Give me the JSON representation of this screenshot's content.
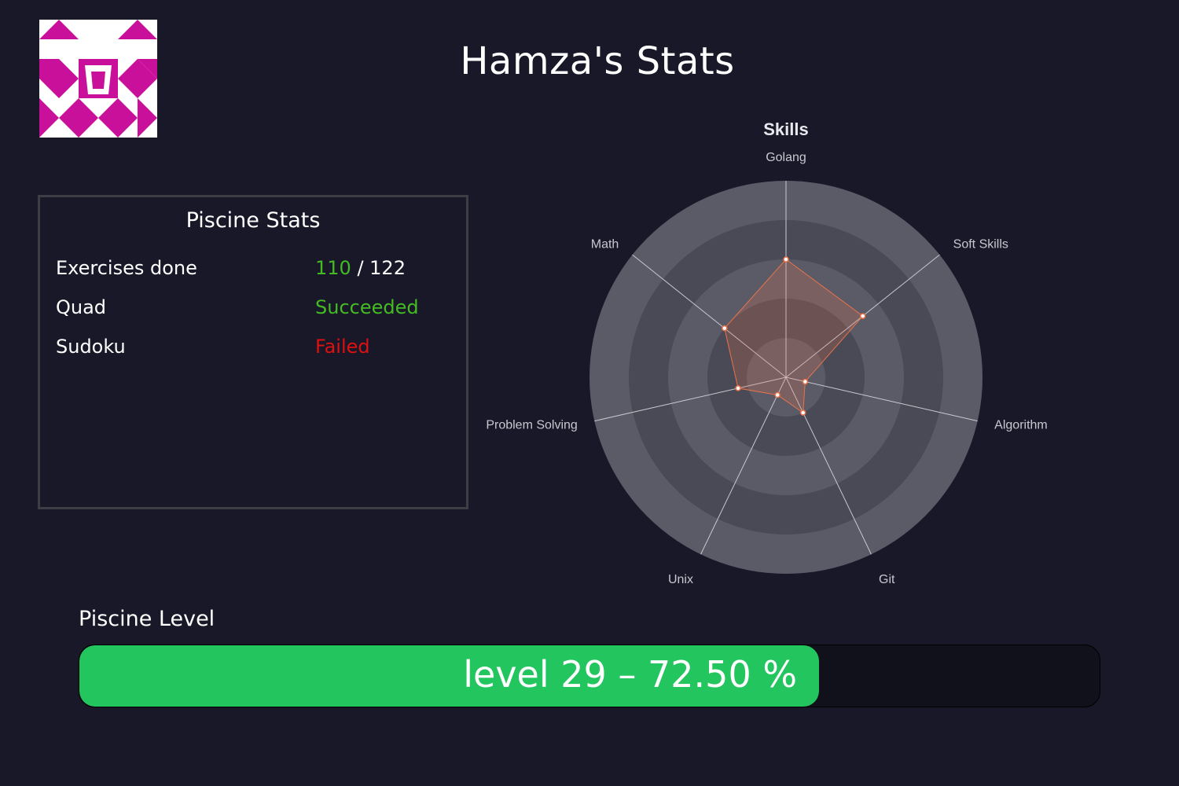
{
  "header": {
    "title": "Hamza's Stats"
  },
  "avatar": {
    "icon": "identicon-avatar",
    "color": "#c8109a"
  },
  "piscine_stats": {
    "title": "Piscine Stats",
    "rows": [
      {
        "label": "Exercises done",
        "value_done": "110",
        "value_sep": " / ",
        "value_total": "122",
        "status": "progress"
      },
      {
        "label": "Quad",
        "value": "Succeeded",
        "status": "success"
      },
      {
        "label": "Sudoku",
        "value": "Failed",
        "status": "failure"
      }
    ]
  },
  "chart_data": {
    "type": "radar",
    "title": "Skills",
    "axes": [
      "Golang",
      "Soft Skills",
      "Algorithm",
      "Git",
      "Unix",
      "Problem Solving",
      "Math"
    ],
    "values": [
      60,
      50,
      10,
      20,
      10,
      25,
      40
    ],
    "range": [
      0,
      100
    ],
    "rings": 5,
    "series_color": "#e8734a"
  },
  "level": {
    "label": "Piscine Level",
    "text": "level 29 – 72.50 %",
    "progress_percent": 72.5,
    "fill_color": "#22c55e"
  }
}
